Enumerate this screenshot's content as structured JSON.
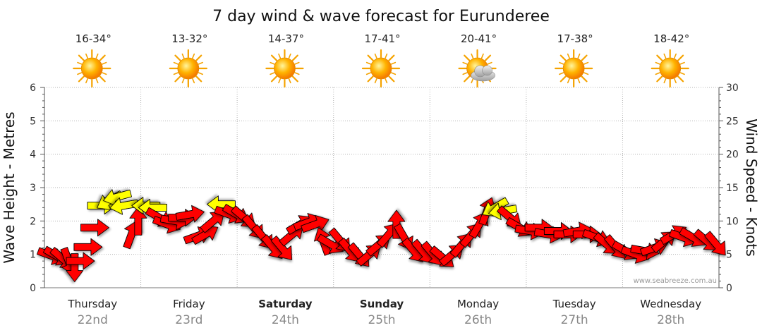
{
  "chart_data": {
    "type": "line",
    "title": "7 day wind & wave forecast for Eurunderee",
    "ylabel_left": "Wave Height - Metres",
    "ylabel_right": "Wind Speed - Knots",
    "ylim_left": [
      0,
      6
    ],
    "ylim_right": [
      0,
      30
    ],
    "yticks_left": [
      "0",
      "1",
      "2",
      "3",
      "4",
      "5",
      "6"
    ],
    "yticks_right": [
      "0",
      "5",
      "10",
      "15",
      "20",
      "25",
      "30"
    ],
    "grid": true,
    "credit": "www.seabreeze.com.au",
    "colors": {
      "strong_wind": "#ff0000",
      "light_wind": "#ffff00",
      "outline": "#000000",
      "grid": "#999999"
    },
    "days": [
      {
        "name": "Thursday",
        "date": "22nd",
        "temp": "16-34°",
        "weather": "sunny-icon",
        "bold": false
      },
      {
        "name": "Friday",
        "date": "23rd",
        "temp": "13-32°",
        "weather": "sunny-icon",
        "bold": false
      },
      {
        "name": "Saturday",
        "date": "24th",
        "temp": "14-37°",
        "weather": "sunny-icon",
        "bold": true
      },
      {
        "name": "Sunday",
        "date": "25th",
        "temp": "17-41°",
        "weather": "sunny-icon",
        "bold": true
      },
      {
        "name": "Monday",
        "date": "26th",
        "temp": "20-41°",
        "weather": "partly-cloudy-icon",
        "bold": false
      },
      {
        "name": "Tuesday",
        "date": "27th",
        "temp": "17-38°",
        "weather": "sunny-icon",
        "bold": false
      },
      {
        "name": "Wednesday",
        "date": "28th",
        "temp": "18-42°",
        "weather": "sunny-icon",
        "bold": false
      }
    ],
    "series": [
      {
        "name": "Wind Speed",
        "unit": "knots",
        "points": [
          {
            "day": 0.0,
            "knots": 4.8,
            "dir": 290,
            "color": "red"
          },
          {
            "day": 0.06,
            "knots": 4.7,
            "dir": 300,
            "color": "red"
          },
          {
            "day": 0.12,
            "knots": 4.3,
            "dir": 310,
            "color": "red"
          },
          {
            "day": 0.18,
            "knots": 3.9,
            "dir": 340,
            "color": "red"
          },
          {
            "day": 0.24,
            "knots": 3.0,
            "dir": 0,
            "color": "red"
          },
          {
            "day": 0.3,
            "knots": 4.0,
            "dir": 270,
            "color": "red"
          },
          {
            "day": 0.38,
            "knots": 6.1,
            "dir": 270,
            "color": "red"
          },
          {
            "day": 0.45,
            "knots": 9.0,
            "dir": 270,
            "color": "red"
          },
          {
            "day": 0.52,
            "knots": 12.3,
            "dir": 270,
            "color": "yellow"
          },
          {
            "day": 0.6,
            "knots": 13.0,
            "dir": 60,
            "color": "yellow"
          },
          {
            "day": 0.68,
            "knots": 13.6,
            "dir": 75,
            "color": "yellow"
          },
          {
            "day": 0.75,
            "knots": 12.3,
            "dir": 80,
            "color": "yellow"
          },
          {
            "day": 0.83,
            "knots": 8.0,
            "dir": 200,
            "color": "red"
          },
          {
            "day": 0.9,
            "knots": 10.0,
            "dir": 180,
            "color": "red"
          },
          {
            "day": 0.98,
            "knots": 12.3,
            "dir": 90,
            "color": "yellow"
          },
          {
            "day": 1.05,
            "knots": 12.0,
            "dir": 90,
            "color": "yellow"
          },
          {
            "day": 1.12,
            "knots": 10.5,
            "dir": 300,
            "color": "red"
          },
          {
            "day": 1.2,
            "knots": 9.5,
            "dir": 290,
            "color": "red"
          },
          {
            "day": 1.28,
            "knots": 10.0,
            "dir": 280,
            "color": "red"
          },
          {
            "day": 1.36,
            "knots": 10.5,
            "dir": 270,
            "color": "red"
          },
          {
            "day": 1.44,
            "knots": 11.0,
            "dir": 260,
            "color": "red"
          },
          {
            "day": 1.52,
            "knots": 7.8,
            "dir": 250,
            "color": "red"
          },
          {
            "day": 1.6,
            "knots": 8.0,
            "dir": 240,
            "color": "red"
          },
          {
            "day": 1.68,
            "knots": 10.0,
            "dir": 230,
            "color": "red"
          },
          {
            "day": 1.76,
            "knots": 12.5,
            "dir": 90,
            "color": "yellow"
          },
          {
            "day": 1.84,
            "knots": 11.0,
            "dir": 290,
            "color": "red"
          },
          {
            "day": 1.92,
            "knots": 11.0,
            "dir": 300,
            "color": "red"
          },
          {
            "day": 2.0,
            "knots": 10.5,
            "dir": 310,
            "color": "red"
          },
          {
            "day": 2.1,
            "knots": 9.0,
            "dir": 320,
            "color": "red"
          },
          {
            "day": 2.2,
            "knots": 7.5,
            "dir": 320,
            "color": "red"
          },
          {
            "day": 2.3,
            "knots": 6.0,
            "dir": 320,
            "color": "red"
          },
          {
            "day": 2.4,
            "knots": 5.8,
            "dir": 320,
            "color": "red"
          },
          {
            "day": 2.5,
            "knots": 8.0,
            "dir": 230,
            "color": "red"
          },
          {
            "day": 2.58,
            "knots": 9.5,
            "dir": 240,
            "color": "red"
          },
          {
            "day": 2.66,
            "knots": 9.8,
            "dir": 250,
            "color": "red"
          },
          {
            "day": 2.74,
            "knots": 9.5,
            "dir": 250,
            "color": "red"
          },
          {
            "day": 2.82,
            "knots": 7.0,
            "dir": 160,
            "color": "red"
          },
          {
            "day": 2.9,
            "knots": 6.5,
            "dir": 300,
            "color": "red"
          },
          {
            "day": 3.0,
            "knots": 7.0,
            "dir": 320,
            "color": "red"
          },
          {
            "day": 3.1,
            "knots": 5.5,
            "dir": 320,
            "color": "red"
          },
          {
            "day": 3.2,
            "knots": 4.8,
            "dir": 320,
            "color": "red"
          },
          {
            "day": 3.3,
            "knots": 5.0,
            "dir": 230,
            "color": "red"
          },
          {
            "day": 3.4,
            "knots": 6.5,
            "dir": 230,
            "color": "red"
          },
          {
            "day": 3.5,
            "knots": 8.0,
            "dir": 220,
            "color": "red"
          },
          {
            "day": 3.58,
            "knots": 9.5,
            "dir": 180,
            "color": "red"
          },
          {
            "day": 3.66,
            "knots": 7.5,
            "dir": 330,
            "color": "red"
          },
          {
            "day": 3.76,
            "knots": 5.5,
            "dir": 320,
            "color": "red"
          },
          {
            "day": 3.86,
            "knots": 5.3,
            "dir": 320,
            "color": "red"
          },
          {
            "day": 3.96,
            "knots": 5.0,
            "dir": 320,
            "color": "red"
          },
          {
            "day": 4.06,
            "knots": 4.5,
            "dir": 310,
            "color": "red"
          },
          {
            "day": 4.16,
            "knots": 5.0,
            "dir": 230,
            "color": "red"
          },
          {
            "day": 4.26,
            "knots": 6.5,
            "dir": 220,
            "color": "red"
          },
          {
            "day": 4.36,
            "knots": 8.0,
            "dir": 220,
            "color": "red"
          },
          {
            "day": 4.44,
            "knots": 9.5,
            "dir": 210,
            "color": "red"
          },
          {
            "day": 4.52,
            "knots": 11.5,
            "dir": 200,
            "color": "red"
          },
          {
            "day": 4.6,
            "knots": 12.0,
            "dir": 60,
            "color": "yellow"
          },
          {
            "day": 4.68,
            "knots": 11.5,
            "dir": 80,
            "color": "yellow"
          },
          {
            "day": 4.76,
            "knots": 10.5,
            "dir": 310,
            "color": "red"
          },
          {
            "day": 4.86,
            "knots": 9.0,
            "dir": 300,
            "color": "red"
          },
          {
            "day": 4.96,
            "knots": 8.5,
            "dir": 280,
            "color": "red"
          },
          {
            "day": 5.06,
            "knots": 9.0,
            "dir": 270,
            "color": "red"
          },
          {
            "day": 5.16,
            "knots": 8.0,
            "dir": 280,
            "color": "red"
          },
          {
            "day": 5.26,
            "knots": 8.5,
            "dir": 270,
            "color": "red"
          },
          {
            "day": 5.36,
            "knots": 8.0,
            "dir": 270,
            "color": "red"
          },
          {
            "day": 5.46,
            "knots": 8.5,
            "dir": 260,
            "color": "red"
          },
          {
            "day": 5.56,
            "knots": 8.0,
            "dir": 270,
            "color": "red"
          },
          {
            "day": 5.66,
            "knots": 7.5,
            "dir": 290,
            "color": "red"
          },
          {
            "day": 5.76,
            "knots": 6.5,
            "dir": 310,
            "color": "red"
          },
          {
            "day": 5.86,
            "knots": 6.0,
            "dir": 320,
            "color": "red"
          },
          {
            "day": 5.96,
            "knots": 5.5,
            "dir": 300,
            "color": "red"
          },
          {
            "day": 6.06,
            "knots": 5.0,
            "dir": 290,
            "color": "red"
          },
          {
            "day": 6.16,
            "knots": 5.5,
            "dir": 280,
            "color": "red"
          },
          {
            "day": 6.26,
            "knots": 6.0,
            "dir": 250,
            "color": "red"
          },
          {
            "day": 6.36,
            "knots": 7.0,
            "dir": 230,
            "color": "red"
          },
          {
            "day": 6.46,
            "knots": 8.0,
            "dir": 240,
            "color": "red"
          },
          {
            "day": 6.56,
            "knots": 7.5,
            "dir": 290,
            "color": "red"
          },
          {
            "day": 6.66,
            "knots": 7.5,
            "dir": 300,
            "color": "red"
          },
          {
            "day": 6.8,
            "knots": 7.0,
            "dir": 310,
            "color": "red"
          },
          {
            "day": 6.9,
            "knots": 6.5,
            "dir": 320,
            "color": "red"
          }
        ]
      }
    ]
  }
}
